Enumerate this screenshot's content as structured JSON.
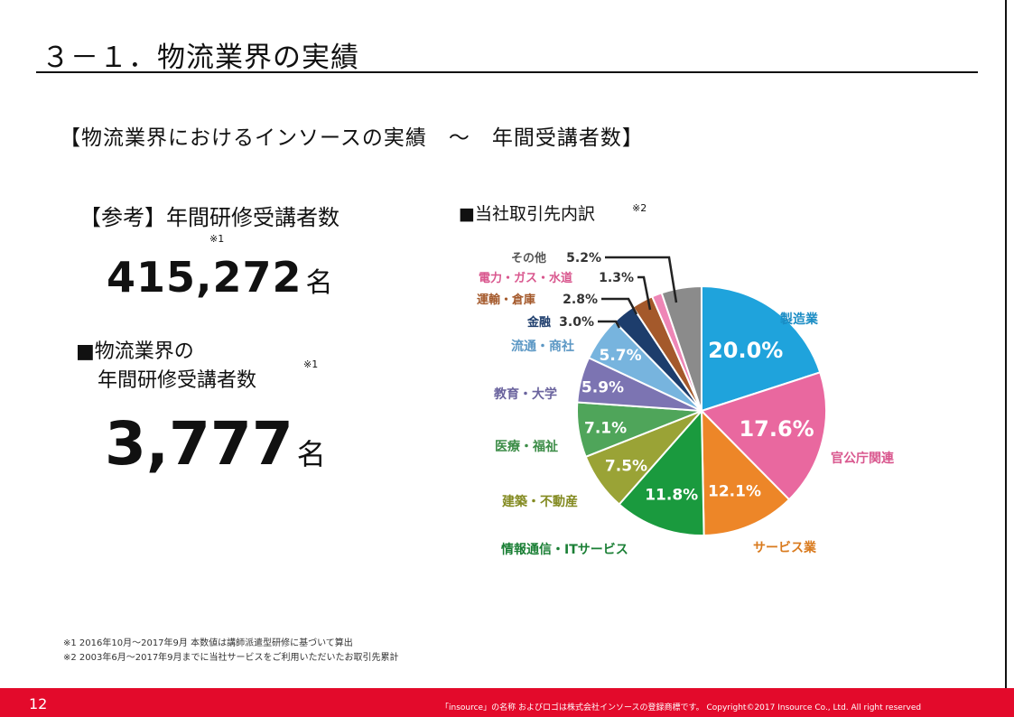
{
  "slide": {
    "title": "３－１．物流業界の実績",
    "subtitle": "【物流業界におけるインソースの実績　～　年間受講者数】"
  },
  "reference": {
    "label": "【参考】年間研修受講者数",
    "note_mark": "※1",
    "value": "415,272",
    "unit": "名"
  },
  "logistics": {
    "label_line1": "■物流業界の",
    "label_line2": "年間研修受講者数",
    "note_mark": "※1",
    "value": "3,777",
    "unit": "名"
  },
  "chart_data": {
    "type": "pie",
    "title": "■当社取引先内訳",
    "title_note_mark": "※2",
    "slices": [
      {
        "label": "製造業",
        "value": 20.0,
        "value_label": "20.0%",
        "color": "#1fa3dc"
      },
      {
        "label": "官公庁関連",
        "value": 17.6,
        "value_label": "17.6%",
        "color": "#e9689f"
      },
      {
        "label": "サービス業",
        "value": 12.1,
        "value_label": "12.1%",
        "color": "#ed8628"
      },
      {
        "label": "情報通信・ITサービス",
        "value": 11.8,
        "value_label": "11.8%",
        "color": "#1a9a3e"
      },
      {
        "label": "建築・不動産",
        "value": 7.5,
        "value_label": "7.5%",
        "color": "#9aa336"
      },
      {
        "label": "医療・福祉",
        "value": 7.1,
        "value_label": "7.1%",
        "color": "#4fa55a"
      },
      {
        "label": "教育・大学",
        "value": 5.9,
        "value_label": "5.9%",
        "color": "#7c74b2"
      },
      {
        "label": "流通・商社",
        "value": 5.7,
        "value_label": "5.7%",
        "color": "#77b4de"
      },
      {
        "label": "金融",
        "value": 3.0,
        "value_label": "3.0%",
        "color": "#1d3d6c"
      },
      {
        "label": "運輸・倉庫",
        "value": 2.8,
        "value_label": "2.8%",
        "color": "#a4592b"
      },
      {
        "label": "電力・ガス・水道",
        "value": 1.3,
        "value_label": "1.3%",
        "color": "#ee86b6"
      },
      {
        "label": "その他",
        "value": 5.2,
        "value_label": "5.2%",
        "color": "#8b8b8b"
      }
    ]
  },
  "footnotes": {
    "note1": "※1 2016年10月～2017年9月 本数値は講師派遣型研修に基づいて算出",
    "note2": "※2 2003年6月～2017年9月までに当社サービスをご利用いただいたお取引先累計"
  },
  "footer": {
    "page_number": "12",
    "copyright": "「insource」の名称 およびロゴは株式会社インソースの登録商標です。 Copyright©2017 Insource Co., Ltd. All right reserved"
  }
}
